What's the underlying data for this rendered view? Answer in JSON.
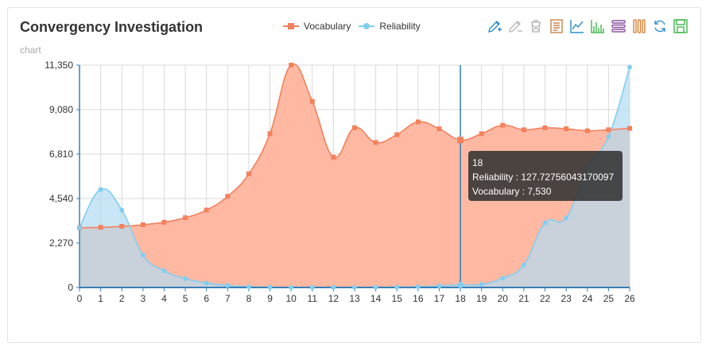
{
  "header": {
    "title": "Convergency Investigation",
    "subtitle": "chart"
  },
  "legend": {
    "items": [
      {
        "label": "Vocabulary",
        "color": "#f4805c",
        "marker": "square"
      },
      {
        "label": "Reliability",
        "color": "#82cef0",
        "marker": "circle"
      }
    ]
  },
  "toolbox": {
    "items": [
      {
        "name": "zoom-icon",
        "color": "#2c8fcd"
      },
      {
        "name": "zoom-reset-icon",
        "color": "#bbbbbb"
      },
      {
        "name": "clear-icon",
        "color": "#bbbbbb"
      },
      {
        "name": "data-view-icon",
        "color": "#c8824a"
      },
      {
        "name": "line-chart-icon",
        "color": "#2c8fcd"
      },
      {
        "name": "bar-chart-icon",
        "color": "#3fb64a"
      },
      {
        "name": "stack-icon",
        "color": "#8a55a0"
      },
      {
        "name": "tiled-icon",
        "color": "#d98237"
      },
      {
        "name": "restore-icon",
        "color": "#2c8fcd"
      },
      {
        "name": "save-image-icon",
        "color": "#3fb64a"
      }
    ]
  },
  "tooltip": {
    "x_label": "18",
    "line1": "Reliability : 127.72756043170097",
    "line2": "Vocabulary : 7,530"
  },
  "chart_data": {
    "type": "area",
    "title": "Convergency Investigation",
    "subtitle": "chart",
    "x": [
      0,
      1,
      2,
      3,
      4,
      5,
      6,
      7,
      8,
      9,
      10,
      11,
      12,
      13,
      14,
      15,
      16,
      17,
      18,
      19,
      20,
      21,
      22,
      23,
      24,
      25,
      26
    ],
    "ylim": [
      0,
      11350
    ],
    "yticks": [
      0,
      2270,
      4540,
      6810,
      9080,
      11350
    ],
    "ytick_labels": [
      "0",
      "2,270",
      "4,540",
      "6,810",
      "9,080",
      "11,350"
    ],
    "grid": true,
    "legend_position": "top-center",
    "highlight_x": 18,
    "series": [
      {
        "name": "Vocabulary",
        "color": "#f4805c",
        "fill": "#ffb9a3",
        "marker": "square",
        "values": [
          3050,
          3070,
          3120,
          3200,
          3330,
          3560,
          3950,
          4650,
          5800,
          7850,
          11350,
          9500,
          6650,
          8150,
          7400,
          7800,
          8450,
          8100,
          7530,
          7850,
          8280,
          8050,
          8150,
          8100,
          8000,
          8050,
          8120
        ]
      },
      {
        "name": "Reliability",
        "color": "#82cef0",
        "fill": "#b2dcf2",
        "marker": "circle",
        "values": [
          3050,
          5000,
          3950,
          1650,
          850,
          450,
          230,
          100,
          40,
          15,
          5,
          5,
          5,
          5,
          5,
          20,
          40,
          80,
          127.72756043170097,
          160,
          480,
          1150,
          3300,
          3550,
          6150,
          7700,
          11250
        ]
      }
    ]
  }
}
